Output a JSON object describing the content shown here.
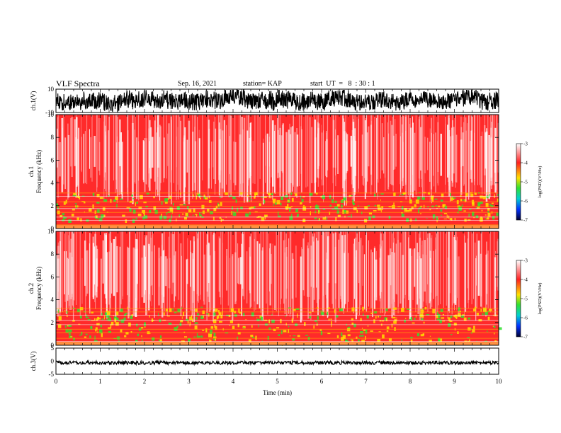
{
  "header": {
    "title": "VLF Spectra",
    "date": "Sep. 16, 2021",
    "station": "station= KAP",
    "start": "start  UT  =   8  : 30 : 1"
  },
  "colors": {
    "background": "#ffffff",
    "trace": "#000000",
    "spectrogram_high": "#ff2020",
    "spectrogram_mid": "#ffe000",
    "spectrogram_low": "#30e030"
  },
  "chart_data": [
    {
      "type": "line",
      "ylabel": "ch.1(V)",
      "ylim": [
        -10,
        10
      ],
      "yticks": [
        "10",
        "-10"
      ],
      "description_trace": "noisy waveform"
    },
    {
      "type": "heatmap",
      "ylabel": "ch.1\nFrequency  (kHz)",
      "ylabel_top": "ch.1",
      "ylabel_bottom": "Frequency  (kHz)",
      "ylim": [
        0,
        10
      ],
      "yticks": [
        "0",
        "2",
        "4",
        "6",
        "8",
        "10"
      ],
      "colorbar": {
        "label": "log(PSD)(V²/Hz)",
        "range": [
          -7,
          -3
        ],
        "ticks": [
          "-3",
          "-4",
          "-5",
          "-6",
          "-7"
        ]
      }
    },
    {
      "type": "heatmap",
      "ylabel_top": "ch.2",
      "ylabel_bottom": "Frequency  (kHz)",
      "ylim": [
        0,
        10
      ],
      "yticks": [
        "0",
        "2",
        "4",
        "6",
        "8",
        "10"
      ],
      "colorbar": {
        "label": "log(PSD)(V²/Hz)",
        "range": [
          -7,
          -3
        ],
        "ticks": [
          "-3",
          "-4",
          "-5",
          "-6",
          "-7"
        ]
      }
    },
    {
      "type": "line",
      "ylabel": "ch.3(V)",
      "ylim": [
        -5,
        5
      ],
      "yticks": [
        "5",
        "0",
        "-5"
      ],
      "xlabel": "Time  (min)",
      "xlim": [
        0,
        10
      ],
      "xticks": [
        "0",
        "1",
        "2",
        "3",
        "4",
        "5",
        "6",
        "7",
        "8",
        "9",
        "10"
      ]
    }
  ]
}
